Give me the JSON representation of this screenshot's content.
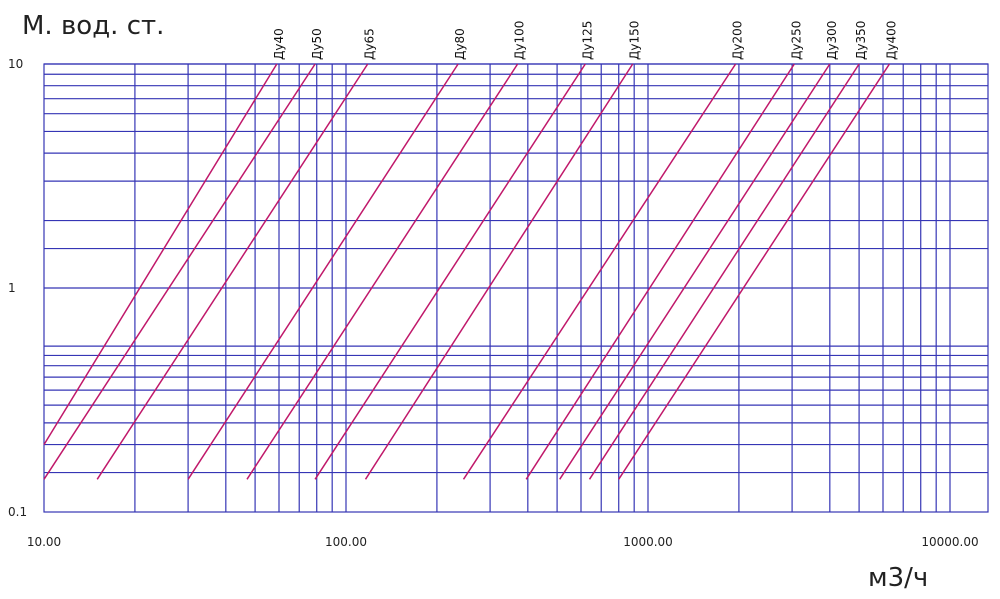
{
  "chart_data": {
    "type": "line",
    "title": "",
    "ylabel": "М. вод. ст.",
    "xlabel": "м3/ч",
    "x_scale": "log",
    "y_scale": "log",
    "xlim": [
      10,
      13000
    ],
    "ylim": [
      0.1,
      10
    ],
    "grid": true,
    "legend": "none",
    "colors": {
      "grid": "#3535b5",
      "series": "#c0186a"
    },
    "x_ticks": [
      {
        "value": 10,
        "label": "10.00"
      },
      {
        "value": 100,
        "label": "100.00"
      },
      {
        "value": 1000,
        "label": "1000.00"
      },
      {
        "value": 10000,
        "label": "10000.00"
      }
    ],
    "y_ticks": [
      {
        "value": 10,
        "label": "10"
      },
      {
        "value": 1,
        "label": "1"
      },
      {
        "value": 0.1,
        "label": "0.1"
      }
    ],
    "x_grid": [
      20,
      30,
      40,
      50,
      60,
      70,
      80,
      90,
      100,
      200,
      300,
      400,
      500,
      600,
      700,
      800,
      900,
      1000,
      2000,
      3000,
      4000,
      5000,
      6000,
      7000,
      8000,
      9000,
      10000
    ],
    "y_grid": [
      0.15,
      0.2,
      0.25,
      0.3,
      0.35,
      0.4,
      0.45,
      0.5,
      0.55,
      1,
      1.5,
      2,
      3,
      4,
      5,
      6,
      7,
      8,
      9,
      10
    ],
    "series": [
      {
        "name": "Ду40",
        "x": [
          10,
          59
        ],
        "y": [
          0.2,
          10
        ]
      },
      {
        "name": "Ду50",
        "x": [
          10,
          79
        ],
        "y": [
          0.14,
          10
        ]
      },
      {
        "name": "Ду65",
        "x": [
          15,
          118
        ],
        "y": [
          0.14,
          10
        ]
      },
      {
        "name": "Ду80",
        "x": [
          30,
          235
        ],
        "y": [
          0.14,
          10
        ]
      },
      {
        "name": "Ду100",
        "x": [
          47,
          370
        ],
        "y": [
          0.14,
          10
        ]
      },
      {
        "name": "Ду125",
        "x": [
          79,
          620
        ],
        "y": [
          0.14,
          10
        ]
      },
      {
        "name": "Ду150",
        "x": [
          116,
          890
        ],
        "y": [
          0.14,
          10
        ]
      },
      {
        "name": "Ду200",
        "x": [
          245,
          1950
        ],
        "y": [
          0.14,
          10
        ]
      },
      {
        "name": "Ду250",
        "x": [
          395,
          3050
        ],
        "y": [
          0.14,
          10
        ]
      },
      {
        "name": "Ду300",
        "x": [
          510,
          4000
        ],
        "y": [
          0.14,
          10
        ]
      },
      {
        "name": "Ду350",
        "x": [
          640,
          5000
        ],
        "y": [
          0.14,
          10
        ]
      },
      {
        "name": "Ду400",
        "x": [
          800,
          6300
        ],
        "y": [
          0.14,
          10
        ]
      }
    ]
  }
}
